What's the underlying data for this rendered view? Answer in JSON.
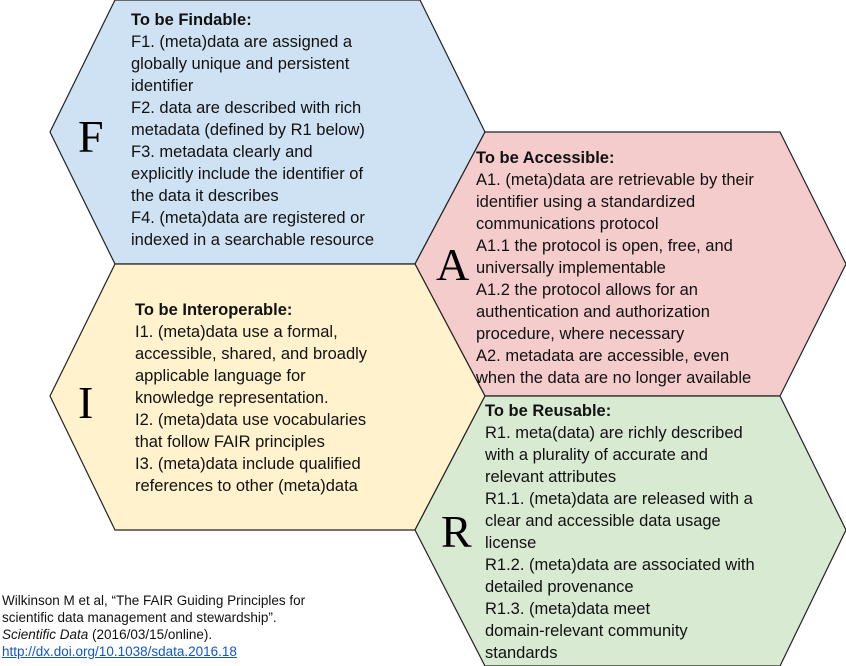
{
  "colors": {
    "findable": "#cfe2f3",
    "accessible": "#f4cccc",
    "interoperable": "#fff2cc",
    "reusable": "#d9ead3",
    "outline": "#222222",
    "link": "#1155cc"
  },
  "hexagons": {
    "findable": {
      "letter": "F",
      "title": "To be Findable:",
      "lines": [
        "F1. (meta)data are assigned a",
        "globally unique and persistent",
        "identifier",
        "F2. data are described with rich",
        "metadata (defined by R1 below)",
        "F3. metadata clearly and",
        "explicitly include the identifier of",
        "the data it describes",
        "F4. (meta)data are registered or",
        "indexed in a searchable resource"
      ]
    },
    "accessible": {
      "letter": "A",
      "title": "To be Accessible:",
      "lines": [
        "A1. (meta)data are retrievable by their",
        "identifier using a standardized",
        "communications protocol",
        "A1.1 the protocol is open, free, and",
        "universally implementable",
        "A1.2 the protocol allows for an",
        "authentication and authorization",
        "procedure, where necessary",
        "A2. metadata are accessible, even",
        "when the data are no longer available"
      ]
    },
    "interoperable": {
      "letter": "I",
      "title": "To be Interoperable:",
      "lines": [
        "I1. (meta)data use a formal,",
        "accessible, shared, and broadly",
        "applicable language for",
        "knowledge representation.",
        "I2. (meta)data use vocabularies",
        "that follow FAIR principles",
        "I3. (meta)data include qualified",
        "references to other (meta)data"
      ]
    },
    "reusable": {
      "letter": "R",
      "title": "To be Reusable:",
      "lines": [
        "R1. meta(data) are richly described",
        "with a plurality of accurate and",
        "relevant attributes",
        "R1.1. (meta)data are released with a",
        "clear and accessible data usage",
        "license",
        "R1.2. (meta)data are associated with",
        "detailed provenance",
        "R1.3. (meta)data meet",
        "domain-relevant community",
        "standards"
      ]
    }
  },
  "citation": {
    "line1": "Wilkinson M et al, “The FAIR Guiding Principles for",
    "line2": "scientific data management and stewardship”.",
    "journal": "Scientific Data",
    "date": " (2016/03/15/online).",
    "link": "http://dx.doi.org/10.1038/sdata.2016.18"
  }
}
